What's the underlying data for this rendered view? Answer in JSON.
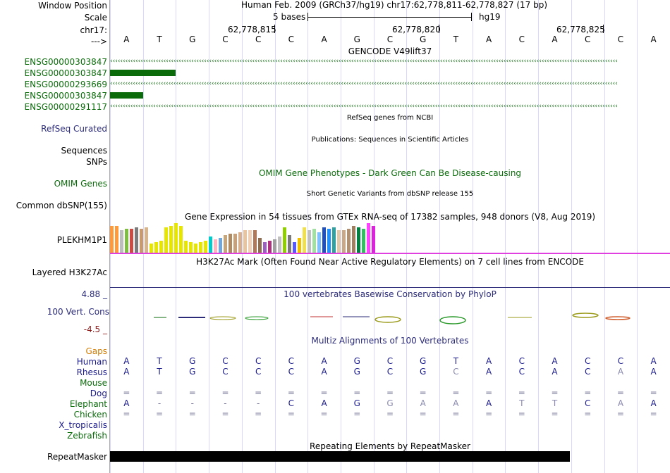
{
  "header": {
    "window_position_label": "Window Position",
    "window_position_text": "Human Feb. 2009 (GRCh37/hg19)   chr17:62,778,811-62,778,827 (17 bp)",
    "scale_label": "Scale",
    "scale_text": "5 bases",
    "scale_assembly": "hg19",
    "chrom_label": "chr17:",
    "positions": [
      "62,778,815",
      "62,778,820",
      "62,778,825"
    ],
    "strand_label": "--->"
  },
  "dna": {
    "bases": [
      "A",
      "T",
      "G",
      "C",
      "C",
      "C",
      "A",
      "G",
      "C",
      "G",
      "T",
      "A",
      "C",
      "A",
      "C",
      "C",
      "A"
    ]
  },
  "gencode": {
    "title": "GENCODE V49lift37",
    "genes": [
      "ENSG00000303847",
      "ENSG00000303847",
      "ENSG00000293669",
      "ENSG00000303847",
      "ENSG00000291117"
    ]
  },
  "tracks": {
    "refseq_title": "RefSeq genes from NCBI",
    "refseq_label": "RefSeq Curated",
    "pubs_title": "Publications: Sequences in Scientific Articles",
    "sequences_label": "Sequences",
    "snps_label": "SNPs",
    "omim_title": "OMIM Gene Phenotypes - Dark Green Can Be Disease-causing",
    "omim_label": "OMIM Genes",
    "dbsnp_title": "Short Genetic Variants from dbSNP release 155",
    "dbsnp_label": "Common dbSNP(155)",
    "gtex_title": "Gene Expression in 54 tissues from GTEx RNA-seq of 17382 samples, 948 donors (V8, Aug 2019)",
    "gtex_label": "PLEKHM1P1",
    "h3k27_title": "H3K27Ac Mark (Often Found Near Active Regulatory Elements) on 7 cell lines from ENCODE",
    "h3k27_label": "Layered H3K27Ac",
    "phylop_title": "100 vertebrates Basewise Conservation by PhyloP",
    "phylop_label": "100 Vert. Cons",
    "phylop_max": "4.88 _",
    "phylop_min": "-4.5 _",
    "multiz_title": "Multiz Alignments of 100 Vertebrates",
    "gaps_label": "Gaps",
    "repeat_title": "Repeating Elements by RepeatMasker",
    "repeat_label": "RepeatMasker"
  },
  "alignment": {
    "species": [
      "Human",
      "Rhesus",
      "Mouse",
      "Dog",
      "Elephant",
      "Chicken",
      "X_tropicalis",
      "Zebrafish"
    ],
    "rows": [
      [
        "A",
        "T",
        "G",
        "C",
        "C",
        "C",
        "A",
        "G",
        "C",
        "G",
        "T",
        "A",
        "C",
        "A",
        "C",
        "C",
        "A"
      ],
      [
        "A",
        "T",
        "G",
        "C",
        "C",
        "C",
        "A",
        "G",
        "C",
        "G",
        "C",
        "A",
        "C",
        "A",
        "C",
        "A",
        "A"
      ],
      [],
      [
        "=",
        "=",
        "=",
        "=",
        "=",
        "=",
        "=",
        "=",
        "=",
        "=",
        "=",
        "=",
        "=",
        "=",
        "=",
        "=",
        "="
      ],
      [
        "A",
        "-",
        "-",
        "-",
        "-",
        "C",
        "A",
        "G",
        "G",
        "A",
        "A",
        "A",
        "T",
        "T",
        "C",
        "A",
        "A"
      ],
      [
        "=",
        "=",
        "=",
        "=",
        "=",
        "=",
        "=",
        "=",
        "=",
        "=",
        "=",
        "=",
        "=",
        "=",
        "=",
        "=",
        "="
      ],
      [],
      []
    ]
  },
  "gtex_values": [
    0.9,
    0.9,
    0.75,
    0.8,
    0.8,
    0.85,
    0.8,
    0.85,
    0.3,
    0.35,
    0.4,
    0.85,
    0.9,
    1.0,
    0.9,
    0.4,
    0.35,
    0.3,
    0.35,
    0.4,
    0.55,
    0.45,
    0.5,
    0.6,
    0.65,
    0.65,
    0.7,
    0.75,
    0.75,
    0.75,
    0.5,
    0.35,
    0.4,
    0.45,
    0.55,
    0.85,
    0.6,
    0.35,
    0.5,
    0.85,
    0.75,
    0.8,
    0.7,
    0.85,
    0.8,
    0.85,
    0.75,
    0.75,
    0.8,
    0.9,
    0.85,
    0.8,
    1.0,
    0.9
  ],
  "colors": {
    "gene": "#0b6b0b",
    "navy": "#2b2b7a",
    "gaps": "#d07a00",
    "phylop_pos": "#2b2b7a",
    "phylop_neg": "#8b1a1a",
    "gtex_line": "#e040e0"
  }
}
